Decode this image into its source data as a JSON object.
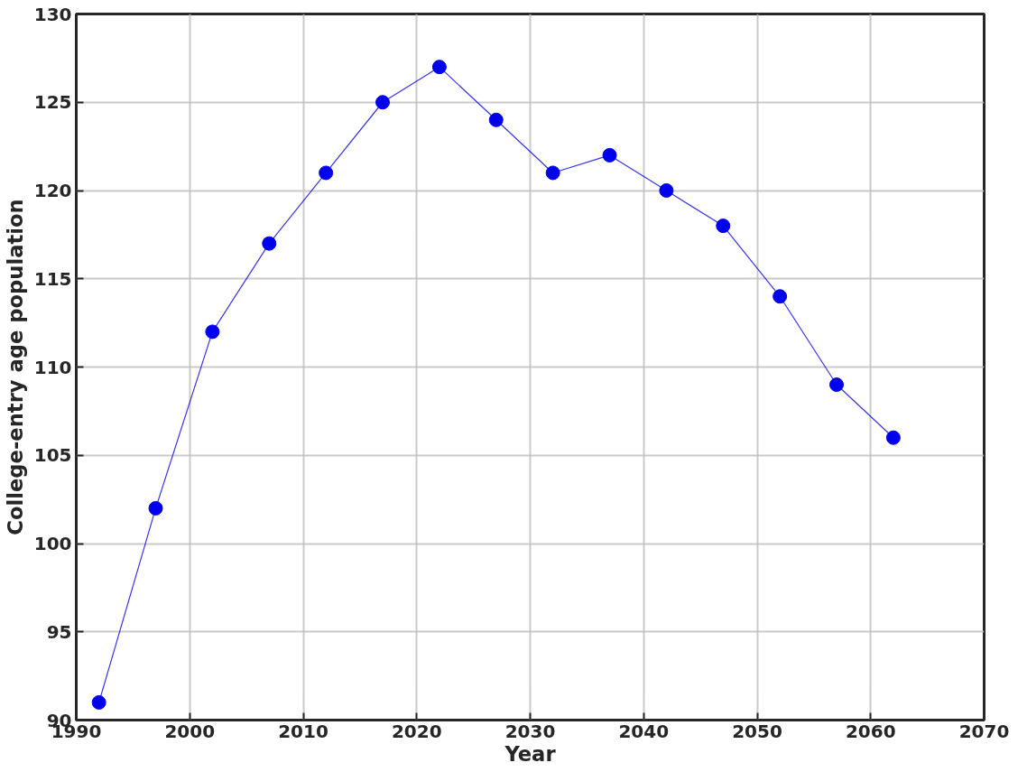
{
  "chart_data": {
    "type": "line",
    "xlabel": "Year",
    "ylabel": "College-entry age population",
    "x": [
      1992,
      1997,
      2002,
      2007,
      2012,
      2017,
      2022,
      2027,
      2032,
      2037,
      2042,
      2047,
      2052,
      2057,
      2062
    ],
    "series": [
      {
        "color": "#0000ee",
        "values": [
          91,
          102,
          112,
          117,
          121,
          125,
          127,
          124,
          121,
          122,
          120,
          118,
          114,
          109,
          106
        ]
      }
    ],
    "xlim": [
      1990,
      2070
    ],
    "xticks": [
      1990,
      2000,
      2010,
      2020,
      2030,
      2040,
      2050,
      2060,
      2070
    ],
    "ylim": [
      90,
      130
    ],
    "yticks": [
      90,
      95,
      100,
      105,
      110,
      115,
      120,
      125,
      130
    ],
    "grid": true,
    "marker": "circle",
    "line_style": "solid"
  }
}
